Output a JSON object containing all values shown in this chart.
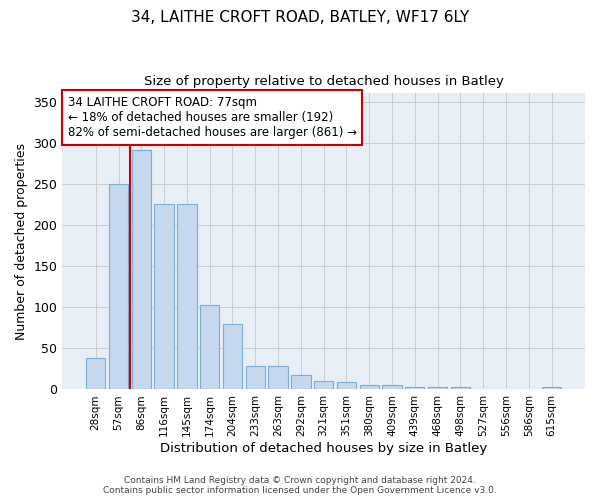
{
  "title1": "34, LAITHE CROFT ROAD, BATLEY, WF17 6LY",
  "title2": "Size of property relative to detached houses in Batley",
  "xlabel": "Distribution of detached houses by size in Batley",
  "ylabel": "Number of detached properties",
  "categories": [
    "28sqm",
    "57sqm",
    "86sqm",
    "116sqm",
    "145sqm",
    "174sqm",
    "204sqm",
    "233sqm",
    "263sqm",
    "292sqm",
    "321sqm",
    "351sqm",
    "380sqm",
    "409sqm",
    "439sqm",
    "468sqm",
    "498sqm",
    "527sqm",
    "556sqm",
    "586sqm",
    "615sqm"
  ],
  "values": [
    38,
    250,
    291,
    225,
    225,
    103,
    79,
    29,
    29,
    18,
    10,
    9,
    5,
    5,
    3,
    3,
    3,
    0,
    0,
    0,
    3
  ],
  "bar_color": "#c5d8ee",
  "bar_edge_color": "#7aaed6",
  "vline_color": "#cc0000",
  "vline_pos": 1.5,
  "annotation_line1": "34 LAITHE CROFT ROAD: 77sqm",
  "annotation_line2": "← 18% of detached houses are smaller (192)",
  "annotation_line3": "82% of semi-detached houses are larger (861) →",
  "annotation_box_color": "#ffffff",
  "annotation_box_edge": "#cc0000",
  "ylim": [
    0,
    360
  ],
  "yticks": [
    0,
    50,
    100,
    150,
    200,
    250,
    300,
    350
  ],
  "footer1": "Contains HM Land Registry data © Crown copyright and database right 2024.",
  "footer2": "Contains public sector information licensed under the Open Government Licence v3.0.",
  "grid_color": "#cccccc",
  "bg_color": "#e8eef5"
}
